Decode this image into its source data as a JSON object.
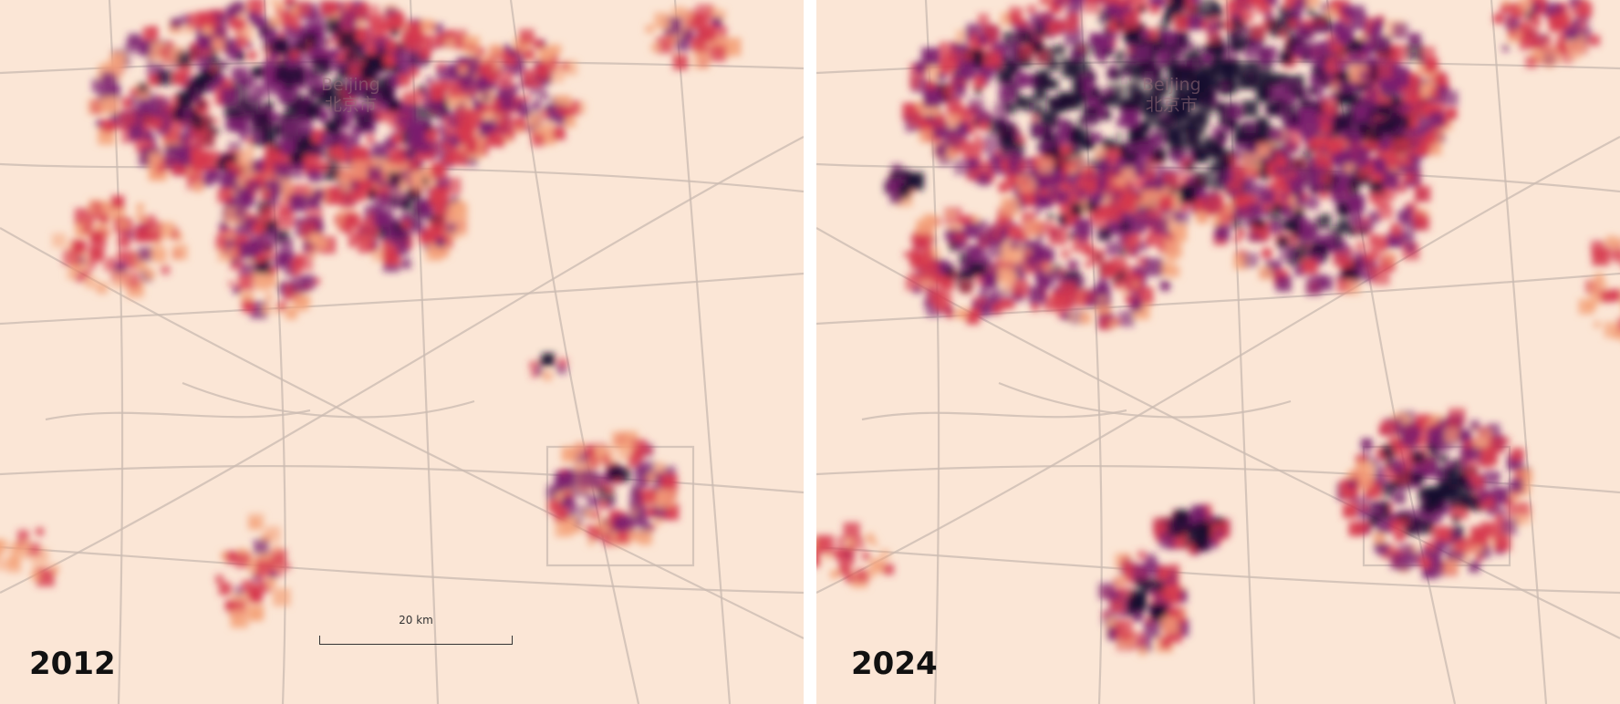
{
  "panels": [
    {
      "year": "2012",
      "city": "Beijing",
      "city_native": "北京市"
    },
    {
      "year": "2024",
      "city": "Beijing",
      "city_native": "北京市"
    }
  ],
  "scale_bar": {
    "label": "20 km"
  },
  "colors": {
    "background": "#fbe6d6",
    "road": "#c9b9b0",
    "low": "#f4a47c",
    "mid": "#d6384d",
    "high": "#7a1f6e",
    "max": "#1a0b2e"
  }
}
